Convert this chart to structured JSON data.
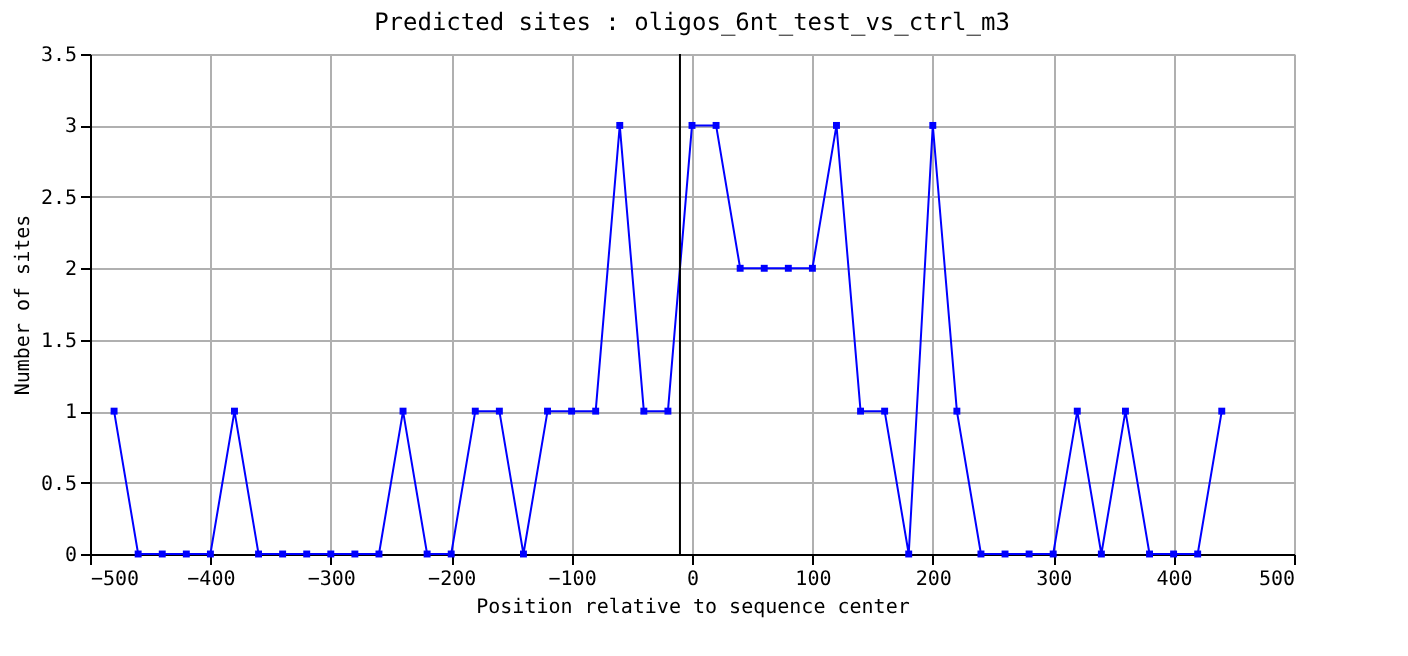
{
  "chart_data": {
    "type": "line",
    "title": "Predicted sites : oligos_6nt_test_vs_ctrl_m3",
    "xlabel": "Position relative to sequence center",
    "ylabel": "Number of sites",
    "x": [
      -480,
      -460,
      -440,
      -420,
      -400,
      -380,
      -360,
      -340,
      -320,
      -300,
      -280,
      -260,
      -240,
      -220,
      -200,
      -180,
      -160,
      -140,
      -120,
      -100,
      -80,
      -60,
      -40,
      -20,
      0,
      20,
      40,
      60,
      80,
      100,
      120,
      140,
      160,
      180,
      200,
      220,
      240,
      260,
      280,
      300,
      320,
      340,
      360,
      380,
      400,
      420,
      440
    ],
    "series": [
      {
        "color": "#0000ff",
        "values": [
          1,
          0,
          0,
          0,
          0,
          1,
          0,
          0,
          0,
          0,
          0,
          0,
          1,
          0,
          0,
          1,
          1,
          0,
          1,
          1,
          1,
          3,
          1,
          1,
          3,
          3,
          2,
          2,
          2,
          2,
          3,
          1,
          1,
          0,
          3,
          1,
          0,
          0,
          0,
          0,
          1,
          0,
          1,
          0,
          0,
          0,
          1
        ]
      }
    ],
    "xlim": [
      -500,
      500
    ],
    "xticks": [
      -500,
      -400,
      -300,
      -200,
      -100,
      0,
      100,
      200,
      300,
      400,
      500
    ],
    "ylim": [
      0,
      3.5
    ],
    "yticks": [
      0,
      0.5,
      1,
      1.5,
      2,
      2.5,
      3,
      3.5
    ],
    "ref_lines": [
      {
        "axis": "x",
        "value": -10,
        "color": "#000000"
      }
    ],
    "grid": true,
    "marker": "square",
    "line_style": "solid"
  }
}
